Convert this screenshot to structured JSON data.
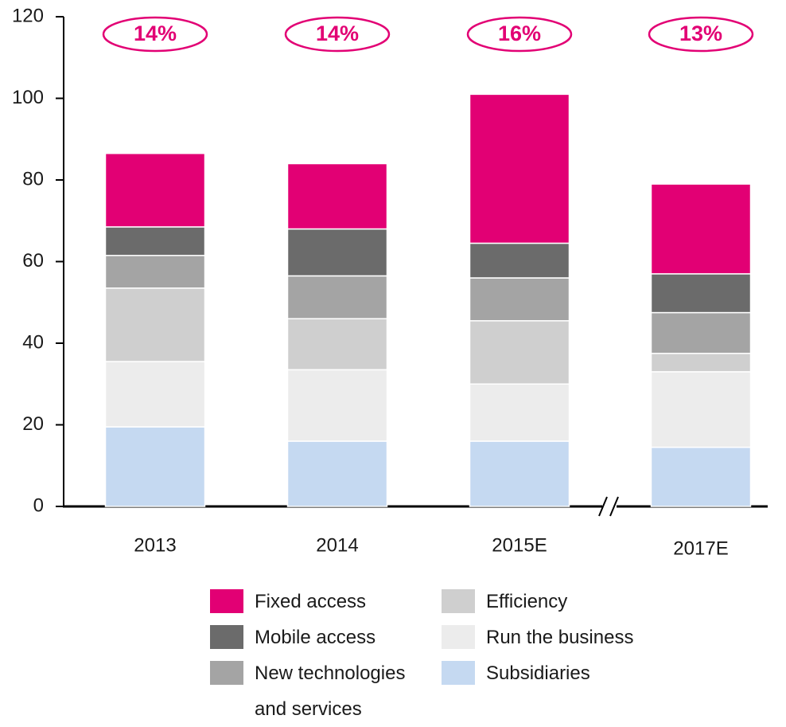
{
  "chart_data": {
    "type": "stacked-bar",
    "categories": [
      "2013",
      "2014",
      "2015E",
      "2017E"
    ],
    "series": [
      {
        "name": "Subsidiaries",
        "color": "#c5d9f1",
        "values": [
          19.5,
          16,
          16,
          14.5
        ]
      },
      {
        "name": "Run the business",
        "color": "#ececec",
        "values": [
          16,
          17.5,
          14,
          18.5
        ]
      },
      {
        "name": "Efficiency",
        "color": "#cfcfcf",
        "values": [
          18,
          12.5,
          15.5,
          4.5
        ]
      },
      {
        "name": "New technologies and services",
        "color": "#a4a4a4",
        "values": [
          8,
          10.5,
          10.5,
          10
        ]
      },
      {
        "name": "Mobile access",
        "color": "#6b6b6b",
        "values": [
          7,
          11.5,
          8.5,
          9.5
        ]
      },
      {
        "name": "Fixed access",
        "color": "#e20074",
        "values": [
          18,
          16,
          36.5,
          22
        ]
      }
    ],
    "annotations": [
      "14%",
      "14%",
      "16%",
      "13%"
    ],
    "annotation_color": "#e20074",
    "ylim": [
      0,
      120
    ],
    "yticks": [
      0,
      20,
      40,
      60,
      80,
      100,
      120
    ]
  }
}
